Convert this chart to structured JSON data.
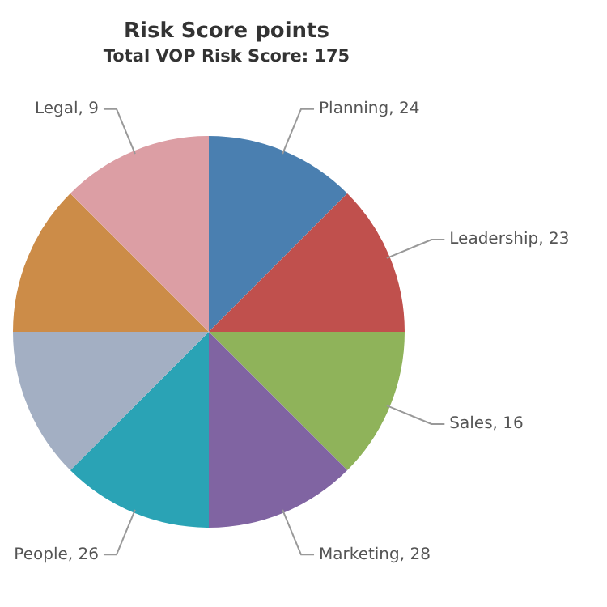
{
  "chart_data": {
    "type": "pie",
    "title": "Risk Score points",
    "subtitle": "Total VOP Risk Score: 175",
    "categories": [
      "Planning, 24",
      "Leadership, 23",
      "Sales, 16",
      "Marketing, 28",
      "People, 26",
      null,
      null,
      "Legal, 9"
    ],
    "values": [
      12.5,
      12.5,
      12.5,
      12.5,
      12.5,
      12.5,
      12.5,
      12.5
    ],
    "colors": [
      "#4a7fb0",
      "#c0504d",
      "#8fb35a",
      "#8064a2",
      "#2aa3b5",
      "#a3afc3",
      "#cc8c48",
      "#dc9ea4"
    ],
    "legend": false
  }
}
